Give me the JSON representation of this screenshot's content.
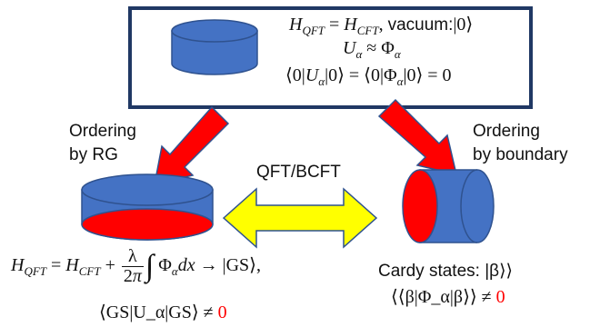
{
  "top_box": {
    "line1": "H_QFT = H_CFT, vacuum:|0⟩",
    "line2": "U_α ≈ Φ_α",
    "line3": "⟨0|U_α|0⟩ = ⟨0|Φ_α|0⟩ = 0"
  },
  "left_label": {
    "line1": "Ordering",
    "line2": "by RG"
  },
  "right_label": {
    "line1": "Ordering",
    "line2": "by boundary"
  },
  "middle_label": "QFT/BCFT",
  "left_bottom": {
    "ground_state": "|GS⟩,",
    "expectation": "⟨GS|U_α|GS⟩ ≠",
    "zero": "0"
  },
  "right_bottom": {
    "cardy": "Cardy states: |β⟩⟩",
    "expectation": "⟨⟨β|Φ_α|β⟩⟩ ≠",
    "zero": "0"
  },
  "colors": {
    "cylinder_blue": "#4472c4",
    "cylinder_red": "#ff0000",
    "arrow_red": "#ff0000",
    "arrow_yellow": "#ffff00",
    "box_border": "#203864"
  }
}
